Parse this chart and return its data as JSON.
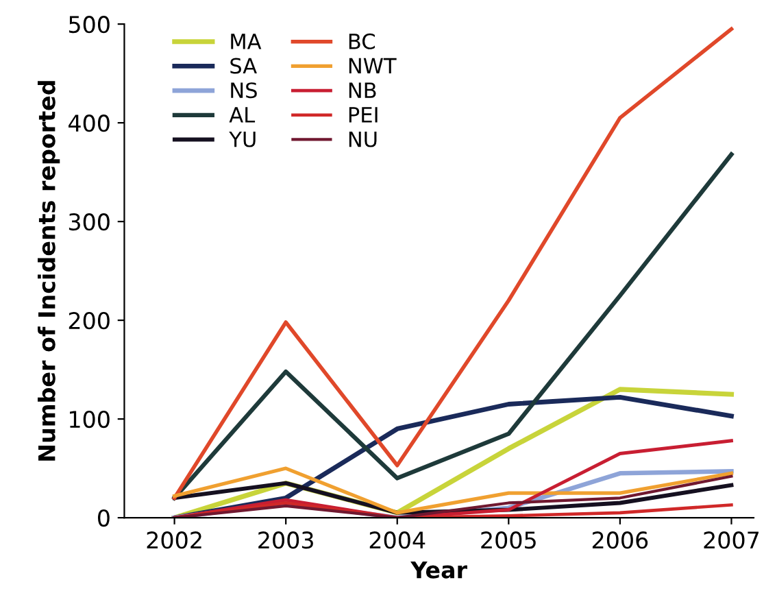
{
  "chart_data": {
    "type": "line",
    "xlabel": "Year",
    "ylabel": "Number of Incidents reported",
    "categories": [
      "2002",
      "2003",
      "2004",
      "2005",
      "2006",
      "2007"
    ],
    "ylim": [
      0,
      500
    ],
    "yticks": [
      0,
      100,
      200,
      300,
      400,
      500
    ],
    "grid": false,
    "legend": "top left",
    "marker": "none",
    "line_style": "solid",
    "series": [
      {
        "name": "MA",
        "color": "#c8d43a",
        "values": [
          0,
          35,
          5,
          70,
          130,
          125
        ]
      },
      {
        "name": "SA",
        "color": "#1a2a5a",
        "values": [
          0,
          20,
          90,
          115,
          122,
          103
        ]
      },
      {
        "name": "NS",
        "color": "#8ea4d8",
        "values": [
          0,
          15,
          0,
          10,
          45,
          47
        ]
      },
      {
        "name": "AL",
        "color": "#1e3a3a",
        "values": [
          20,
          148,
          40,
          85,
          225,
          368
        ]
      },
      {
        "name": "YU",
        "color": "#151020",
        "values": [
          20,
          35,
          5,
          8,
          15,
          33
        ]
      },
      {
        "name": "BC",
        "color": "#e0482a",
        "values": [
          20,
          198,
          53,
          220,
          405,
          495
        ]
      },
      {
        "name": "NWT",
        "color": "#f0a030",
        "values": [
          22,
          50,
          5,
          25,
          25,
          45
        ]
      },
      {
        "name": "NB",
        "color": "#c81e32",
        "values": [
          0,
          18,
          0,
          8,
          65,
          78
        ]
      },
      {
        "name": "PEI",
        "color": "#d02828",
        "values": [
          0,
          15,
          0,
          2,
          5,
          13
        ]
      },
      {
        "name": "NU",
        "color": "#701830",
        "values": [
          0,
          12,
          0,
          15,
          20,
          42
        ]
      }
    ]
  }
}
